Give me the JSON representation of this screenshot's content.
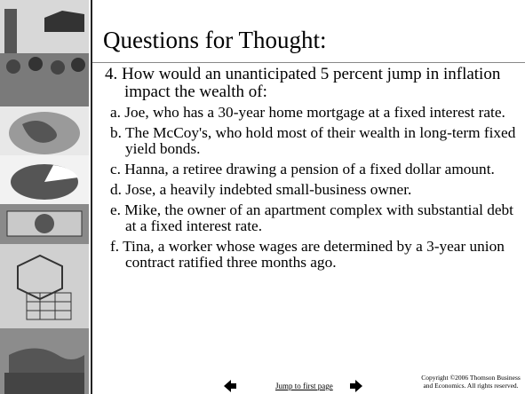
{
  "title": "Questions for Thought:",
  "question": "4. How would an unanticipated 5 percent jump in inflation impact the wealth of:",
  "items": [
    "a. Joe, who has a 30-year home mortgage at a fixed interest rate.",
    "b. The McCoy's, who hold most of their wealth in long-term fixed yield bonds.",
    "c. Hanna, a retiree drawing a pension of a fixed dollar amount.",
    "d. Jose, a heavily indebted small-business owner.",
    "e. Mike, the owner of an apartment complex with substantial debt at a fixed interest rate.",
    "f. Tina, a worker whose wages are determined by a 3-year union contract ratified three months ago."
  ],
  "footer": {
    "link": "Jump to first page",
    "copyright": "Copyright ©2006 Thomson Business and Economics. All rights reserved."
  }
}
